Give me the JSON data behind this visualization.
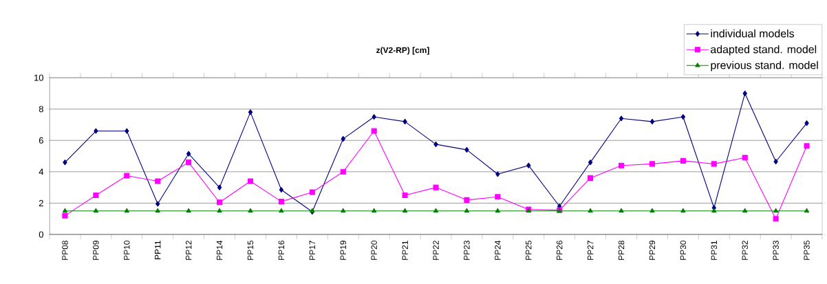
{
  "chart_data": {
    "type": "line",
    "title": "z(V2-RP) [cm]",
    "categories": [
      "PP08",
      "PP09",
      "PP10",
      "PP11",
      "PP12",
      "PP14",
      "PP15",
      "PP16",
      "PP17",
      "PP19",
      "PP20",
      "PP21",
      "PP22",
      "PP23",
      "PP24",
      "PP25",
      "PP26",
      "PP27",
      "PP28",
      "PP29",
      "PP30",
      "PP31",
      "PP32",
      "PP33",
      "PP35"
    ],
    "series": [
      {
        "name": "individual models",
        "color": "#000080",
        "marker": "diamond",
        "values": [
          4.6,
          6.6,
          6.6,
          1.95,
          5.15,
          3.0,
          7.8,
          2.85,
          1.45,
          6.1,
          7.5,
          7.2,
          5.75,
          5.4,
          3.85,
          4.4,
          1.8,
          4.6,
          7.4,
          7.2,
          7.5,
          1.7,
          9.0,
          4.65,
          7.1
        ]
      },
      {
        "name": "adapted stand. model",
        "color": "#ff00ff",
        "marker": "square",
        "values": [
          1.2,
          2.5,
          3.75,
          3.4,
          4.6,
          2.05,
          3.4,
          2.1,
          2.7,
          4.0,
          6.6,
          2.5,
          3.0,
          2.2,
          2.4,
          1.6,
          1.55,
          3.6,
          4.4,
          4.5,
          4.7,
          4.5,
          4.9,
          1.0,
          5.65
        ]
      },
      {
        "name": "previous stand. model",
        "color": "#008000",
        "marker": "triangle",
        "values": [
          1.5,
          1.5,
          1.5,
          1.5,
          1.5,
          1.5,
          1.5,
          1.5,
          1.5,
          1.5,
          1.5,
          1.5,
          1.5,
          1.5,
          1.5,
          1.5,
          1.5,
          1.5,
          1.5,
          1.5,
          1.5,
          1.5,
          1.5,
          1.5,
          1.5
        ]
      }
    ],
    "ylim": [
      0,
      10
    ],
    "yticks": [
      0,
      2,
      4,
      6,
      8,
      10
    ],
    "grid": "y",
    "legend": "top right",
    "line_style": "solid"
  }
}
